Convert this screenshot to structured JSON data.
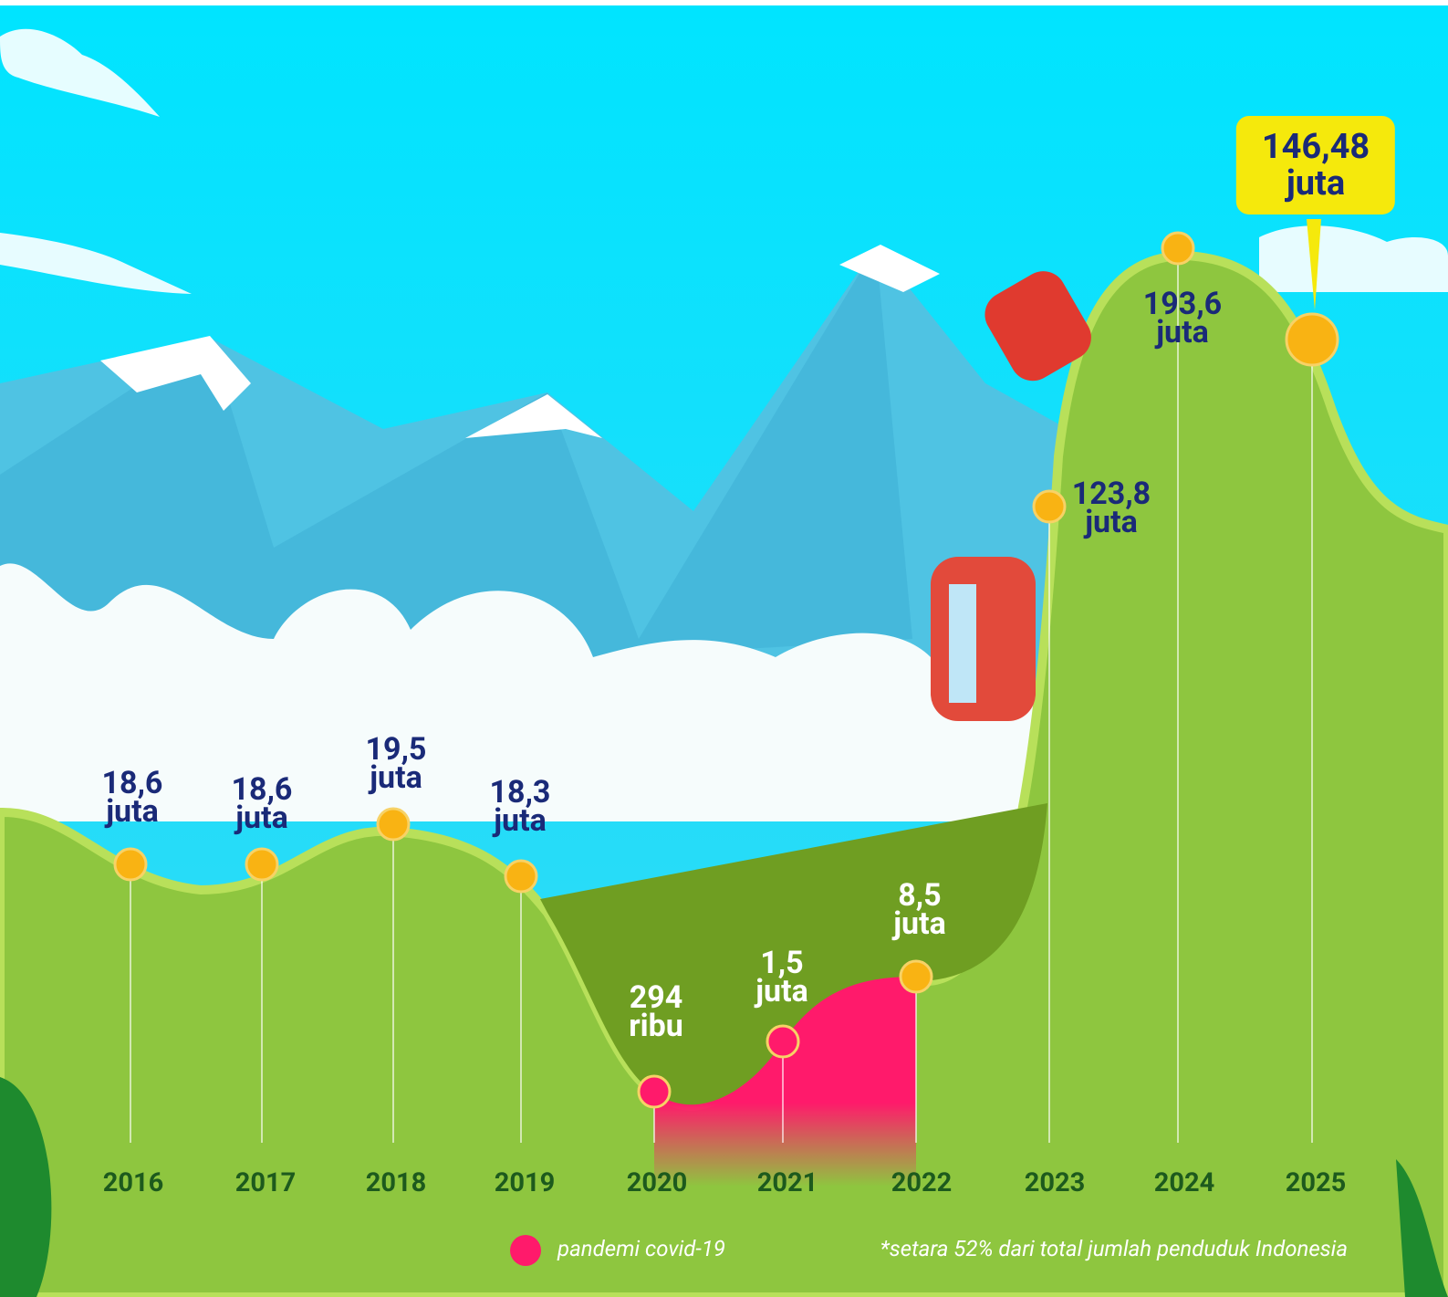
{
  "chart_data": {
    "type": "line",
    "categories": [
      "2016",
      "2017",
      "2018",
      "2019",
      "2020",
      "2021",
      "2022",
      "2023",
      "2024",
      "2025"
    ],
    "values": [
      18.6,
      18.6,
      19.5,
      18.3,
      0.294,
      1.5,
      8.5,
      123.8,
      193.6,
      146.48
    ],
    "value_labels": [
      "18,6 juta",
      "18,6 juta",
      "19,5 juta",
      "18,3 juta",
      "294 ribu",
      "1,5 juta",
      "8,5 juta",
      "123,8 juta",
      "193,6 juta",
      "146,48 juta"
    ],
    "point_colors": [
      "#f9b313",
      "#f9b313",
      "#f9b313",
      "#f9b313",
      "#ff1a6b",
      "#ff1a6b",
      "#f9b313",
      "#f9b313",
      "#f9b313",
      "#f9b313"
    ],
    "legend": {
      "name": "pandemi covid-19",
      "color": "#ff1a6b"
    },
    "note": "*setara 52% dari total jumlah penduduk Indonesia"
  }
}
